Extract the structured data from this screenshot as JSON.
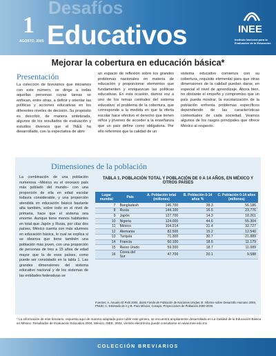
{
  "header": {
    "issue": "1",
    "date": "AGOSTO, 2005",
    "series_faded": "Desafíos",
    "series": "Educativos",
    "logo": "INEE",
    "institute": "Instituto Nacional para la Evaluación de la Educación"
  },
  "title": "Mejorar la cobertura en educación básica*",
  "presentation": {
    "heading": "Presentación",
    "columns": [
      "La colección de breviarios que iniciamos con este número, se dirige a todas aquellas personas cuyas tareas se enfocan, entre otras, a definir y orientar las políticas y acciones educativas en los diferentes niveles de decisión. Su propósito es describir, de manera sintetizada, algunos de los resultados de evaluación y estudios diversos que el INEE ha desarrollado, con la expectativa de abrir",
      "un espacio de reflexión sobre los grandes problemas nacionales en materia de educación y proporcionar elementos que fundamenten y enriquezcan las políticas educativas. En esta ocasión, damos voz a uno de los temas centrales del sistema educativo: el problema de la cobertura, que corresponde a la medida en que la oferta escolar hace efectivo el derecho que tienen niños y jóvenes de acceder a la enseñanza que un país define como obligatoria. Por ello referimos que la calidad de un",
      "sistema educativo comienza con su cobertura, requisito elemental para que otras dimensiones de la calidad puedan darse, en especial el nivel de aprendizaje. Ahora bien, no obstante el empeño y compromiso que un país pueda mostrar, la escolarización de la población enfrenta problemas específicos dependiendo de las características contextuales de cada sociedad. Veamos algunos de los rasgos principales que ofrece México al respecto."
    ]
  },
  "dimensions": {
    "heading": "Dimensiones de la población",
    "text": "La combinación de una población numerosa –México es el onceavo país más poblado del mundo– con una proporción de ella en edad escolar todavía considerable, y una proporción atendida en educación básica bastante alta también, sobre todo en el nivel de primaria, hace que el sistema sea enorme. Aunque tiene menos habitantes en total que Japón y Rusia, por citar dos países, México cuenta con más alumnos en educación básica, lo cual se explica si se observa que tiene también una población más joven, con una proporción de personas de tres a 15 años de edad mayor que la de esos países, como puede ser constatado en la tabla 1. Las grandes dimensiones del sistema educativo nacional y de los sistemas de las entidades federativas se"
  },
  "table": {
    "title": "TABLA 1. POBLACIÓN TOTAL Y POBLACIÓN DE 0 A 14 AÑOS, EN MÉXICO Y OTROS PAÍSES",
    "headers": [
      "Lugar mundial",
      "País",
      "A. Población total (millones)",
      "B. Población 0-14 años %",
      "C. Población 0-14 años (millones)"
    ],
    "rows": [
      [
        "7",
        "Bangladesh",
        "146.700",
        "38.3",
        "56.186"
      ],
      [
        "8",
        "Rusia",
        "144.100",
        "16.5",
        "23.776"
      ],
      [
        "9",
        "Japón",
        "127.700",
        "14.3",
        "18.261"
      ],
      [
        "10",
        "Nigeria",
        "124.000",
        "44.6",
        "55.304"
      ],
      [
        "11",
        "México",
        "104.214",
        "31.4",
        "32.727"
      ],
      [
        "12",
        "Alemania",
        "82.500",
        "15.2",
        "12.540"
      ],
      [
        "13",
        "Turquía",
        "71.300",
        "30.7",
        "21.889"
      ],
      [
        "14",
        "Francia",
        "60.100",
        "18.6",
        "11.179"
      ],
      [
        "15",
        "Reino Unido",
        "59.300",
        "18.7",
        "11.089"
      ],
      [
        "16",
        "Corea del Sur",
        "47.700",
        "20.1",
        "9.588"
      ]
    ],
    "source": "Fuentes: A. Anuario El País 2004, datos Fondo de Población de Naciones Unidas; B. Informe sobre Desarrollo Humano 2004, PNUD; C. Estimado de A y B. Para México, Conapo, Proyecciones de Población 2000-2030."
  },
  "footnote": "* La información de este breviario, expuesta aquí de manera adaptada para cubrir este género, se encuentra ampliamente desarrollada en La Calidad de la Educación Básica en México. Resultados de Evaluación Educativa 2004. México, INEE, 2004, versión electrónica puede consultarse en www.inee.edu.mx",
  "footer": "COLECCIÓN BREVIARIOS"
}
